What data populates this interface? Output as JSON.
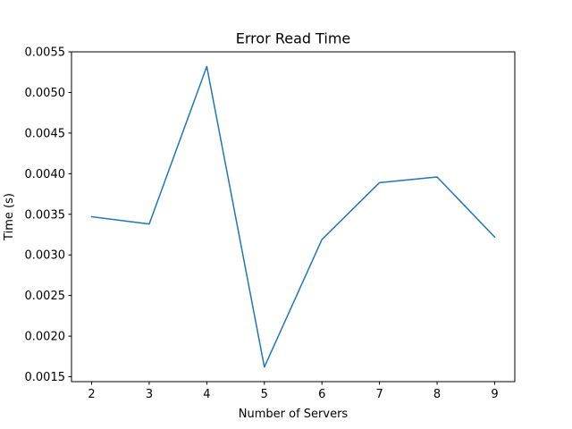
{
  "chart_data": {
    "type": "line",
    "title": "Error Read Time",
    "xlabel": "Number of Servers",
    "ylabel": "Time (s)",
    "x": [
      2,
      3,
      4,
      5,
      6,
      7,
      8,
      9
    ],
    "series": [
      {
        "values": [
          0.00347,
          0.00338,
          0.00532,
          0.00162,
          0.00319,
          0.00389,
          0.00396,
          0.00322
        ],
        "color": "#1f77b4"
      }
    ],
    "xticks": [
      2,
      3,
      4,
      5,
      6,
      7,
      8,
      9
    ],
    "xtick_labels": [
      "2",
      "3",
      "4",
      "5",
      "6",
      "7",
      "8",
      "9"
    ],
    "yticks": [
      0.0015,
      0.002,
      0.0025,
      0.003,
      0.0035,
      0.004,
      0.0045,
      0.005,
      0.0055
    ],
    "ytick_labels": [
      "0.0015",
      "0.0020",
      "0.0025",
      "0.0030",
      "0.0035",
      "0.0040",
      "0.0045",
      "0.0050",
      "0.0055"
    ],
    "xlim": [
      1.65,
      9.35
    ],
    "ylim": [
      0.00144,
      0.0055
    ],
    "grid": false,
    "legend": "none"
  }
}
